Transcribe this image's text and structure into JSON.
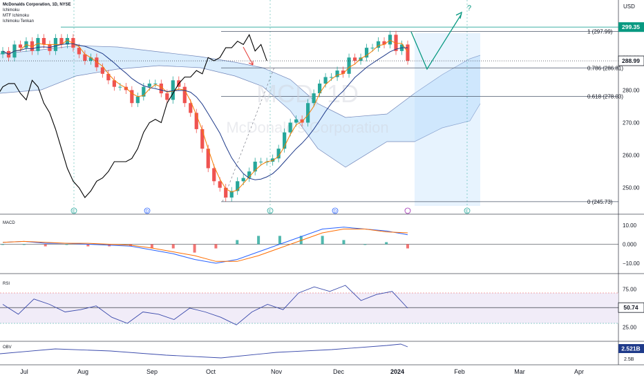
{
  "header": {
    "symbol": "McDonalds Corporation, 1D, NYSE",
    "indicators": [
      "Ichimoku",
      "MTF Ichimoku",
      "Ichimoku Tenkan"
    ]
  },
  "watermark": {
    "ticker": "MCD, 1D",
    "name": "McDonald's Corporation"
  },
  "currency": "USD",
  "colors": {
    "up": "#26a69a",
    "down": "#ef5350",
    "tenkan": "#f57c00",
    "kijun": "#1e3a8a",
    "chikou": "#000000",
    "cloud": "#bbdefb",
    "fib": "#4a5568",
    "arrow": "#089981",
    "red_arrow": "#e53935",
    "rsi_band": "#ede7f6",
    "macd": "#2962ff",
    "signal": "#ff6d00"
  },
  "chart_data": [
    {
      "type": "candlestick",
      "title": "McDonalds Corporation, 1D, NYSE",
      "x_labels": [
        "Jul",
        "Aug",
        "Sep",
        "Oct",
        "Nov",
        "Dec",
        "2024",
        "Feb",
        "Mar",
        "Apr"
      ],
      "y_ticks": [
        250.0,
        260.0,
        270.0,
        280.0,
        290.0,
        300.0
      ],
      "ylim": [
        244,
        303
      ],
      "y_labels": [
        "250.00",
        "260.00",
        "270.00",
        "280.00",
        "290.00"
      ],
      "last_price": "288.99",
      "high_label": "299.35",
      "fib_levels": [
        {
          "label": "1 (297.99)",
          "value": 297.99
        },
        {
          "label": "0.786 (286.81)",
          "value": 286.81
        },
        {
          "label": "0.618 (278.03)",
          "value": 278.03
        },
        {
          "label": "0 (245.73)",
          "value": 245.73
        }
      ],
      "closes": [
        292,
        290,
        294,
        293,
        295,
        292,
        296,
        294,
        292,
        296,
        294,
        296,
        293,
        291,
        289,
        290,
        287,
        285,
        283,
        281,
        281,
        280,
        276,
        278,
        281,
        282,
        282,
        279,
        277,
        283,
        281,
        276,
        273,
        268,
        262,
        256,
        252,
        250,
        247,
        249,
        252,
        253,
        255,
        258,
        258,
        258,
        259,
        262,
        267,
        270,
        271,
        270,
        276,
        279,
        282,
        284,
        284,
        286,
        285,
        290,
        289,
        290,
        293,
        293,
        295,
        294,
        297,
        292,
        294,
        289
      ],
      "markers": [
        "E",
        "D",
        "E",
        "D",
        "E"
      ],
      "question": "?"
    },
    {
      "type": "line",
      "title": "MACD",
      "y_ticks": [
        10,
        0,
        -10
      ],
      "y_labels": [
        "10.00",
        "0.000",
        "−10.00"
      ],
      "macd": [
        1,
        1.5,
        0.5,
        0.5,
        0,
        -0.5,
        -1,
        -3,
        -5,
        -8,
        -10,
        -8,
        -4,
        0,
        4,
        8,
        9,
        8,
        7,
        5
      ],
      "signal": [
        1,
        1.5,
        1,
        0.5,
        0.5,
        0,
        -0.5,
        -2,
        -4,
        -6,
        -9,
        -9,
        -6,
        -2,
        2,
        6,
        8,
        8,
        6.5,
        6
      ]
    },
    {
      "type": "line",
      "title": "RSI",
      "y_ticks": [
        75,
        50,
        25
      ],
      "y_labels": [
        "75.00",
        "50.74",
        "25.00"
      ],
      "band": [
        30,
        70
      ],
      "values": [
        55,
        42,
        62,
        55,
        45,
        48,
        53,
        38,
        30,
        45,
        42,
        35,
        50,
        45,
        38,
        28,
        45,
        55,
        48,
        70,
        78,
        72,
        80,
        60,
        68,
        72,
        50
      ]
    },
    {
      "type": "line",
      "title": "OBV",
      "last_value": "2.521B",
      "lower_label": "2.5B"
    }
  ]
}
